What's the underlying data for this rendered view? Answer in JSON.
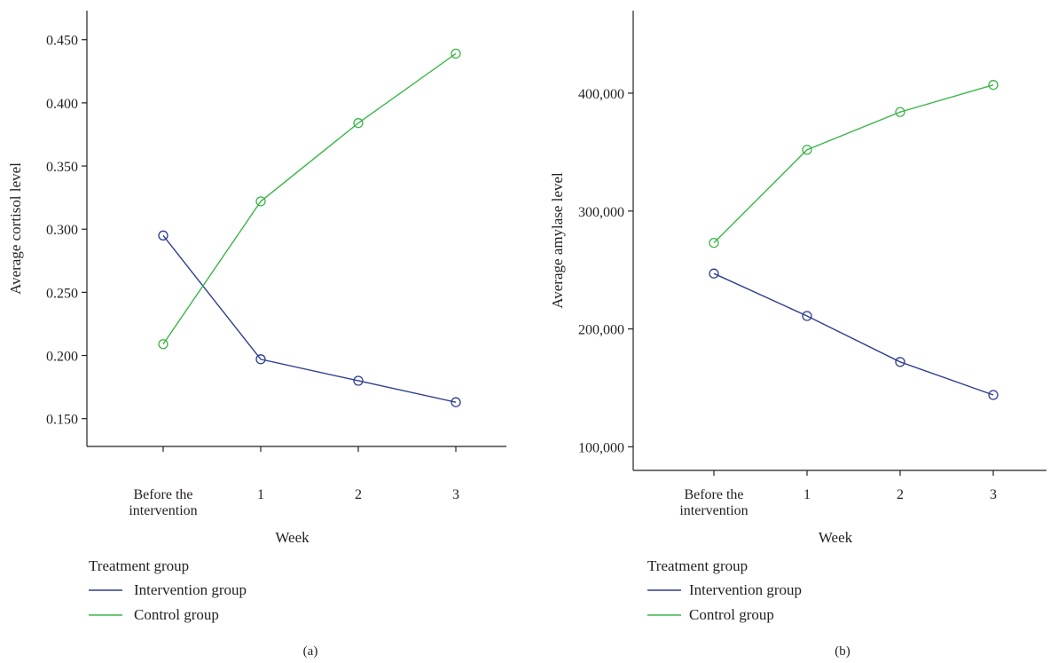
{
  "chart_data": [
    {
      "type": "line",
      "panel_label": "(a)",
      "xlabel": "Week",
      "ylabel": "Average cortisol level",
      "categories": [
        [
          "Before the",
          "intervention"
        ],
        [
          "1"
        ],
        [
          "2"
        ],
        [
          "3"
        ]
      ],
      "yticks": [
        "0.150",
        "0.200",
        "0.250",
        "0.300",
        "0.350",
        "0.400",
        "0.450"
      ],
      "ytick_values": [
        0.15,
        0.2,
        0.25,
        0.3,
        0.35,
        0.4,
        0.45
      ],
      "ylim": [
        0.128,
        0.473
      ],
      "legend_title": "Treatment group",
      "legend_position": "below",
      "series": [
        {
          "name": "Intervention group",
          "color": "#2e3d8f",
          "values": [
            0.295,
            0.197,
            0.18,
            0.163
          ]
        },
        {
          "name": "Control group",
          "color": "#3cb54a",
          "values": [
            0.209,
            0.322,
            0.384,
            0.439
          ]
        }
      ]
    },
    {
      "type": "line",
      "panel_label": "(b)",
      "xlabel": "Week",
      "ylabel": "Average amylase level",
      "categories": [
        [
          "Before the",
          "intervention"
        ],
        [
          "1"
        ],
        [
          "2"
        ],
        [
          "3"
        ]
      ],
      "yticks": [
        "100,000",
        "200,000",
        "300,000",
        "400,000"
      ],
      "ytick_values": [
        100000,
        200000,
        300000,
        400000
      ],
      "ylim": [
        80000,
        470000
      ],
      "legend_title": "Treatment group",
      "legend_position": "below",
      "series": [
        {
          "name": "Intervention group",
          "color": "#2e3d8f",
          "values": [
            247000,
            211000,
            172000,
            144000
          ]
        },
        {
          "name": "Control group",
          "color": "#3cb54a",
          "values": [
            273000,
            352000,
            384000,
            407000
          ]
        }
      ]
    }
  ]
}
